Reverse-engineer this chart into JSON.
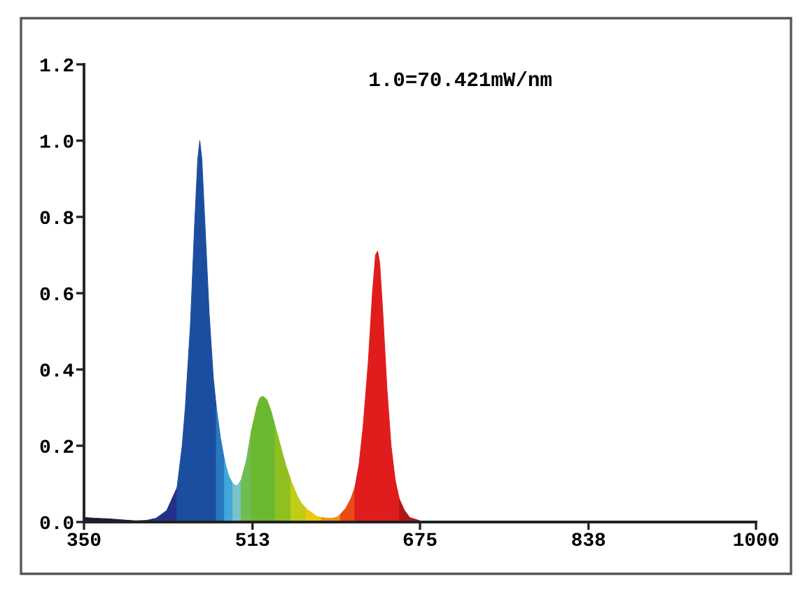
{
  "chart_data": {
    "type": "area",
    "series": [
      {
        "color": "#1a1a3a",
        "x": [
          350,
          360,
          375,
          390,
          400,
          410
        ],
        "values": [
          0.012,
          0.01,
          0.008,
          0.005,
          0.003,
          0.004
        ]
      },
      {
        "color": "#23308a",
        "x": [
          410,
          420,
          430,
          440
        ],
        "values": [
          0.004,
          0.01,
          0.03,
          0.09
        ]
      },
      {
        "color": "#1c4ea0",
        "x": [
          440,
          445,
          448,
          453,
          457,
          460,
          462,
          464,
          467,
          471,
          475,
          478
        ],
        "values": [
          0.09,
          0.2,
          0.3,
          0.52,
          0.78,
          0.95,
          1.0,
          0.95,
          0.78,
          0.55,
          0.38,
          0.3
        ]
      },
      {
        "color": "#2878c0",
        "x": [
          478,
          482,
          486
        ],
        "values": [
          0.3,
          0.22,
          0.16
        ]
      },
      {
        "color": "#40a8dc",
        "x": [
          486,
          490,
          494
        ],
        "values": [
          0.16,
          0.12,
          0.1
        ]
      },
      {
        "color": "#78c4c8",
        "x": [
          494,
          498,
          502
        ],
        "values": [
          0.1,
          0.095,
          0.11
        ]
      },
      {
        "color": "#70bc50",
        "x": [
          502,
          507,
          512
        ],
        "values": [
          0.11,
          0.16,
          0.24
        ]
      },
      {
        "color": "#6cb830",
        "x": [
          512,
          517,
          520,
          523,
          527,
          531,
          535
        ],
        "values": [
          0.24,
          0.3,
          0.325,
          0.33,
          0.32,
          0.29,
          0.25
        ]
      },
      {
        "color": "#90c020",
        "x": [
          535,
          540,
          545,
          550
        ],
        "values": [
          0.25,
          0.2,
          0.15,
          0.11
        ]
      },
      {
        "color": "#c0cc18",
        "x": [
          550,
          556,
          560,
          565
        ],
        "values": [
          0.11,
          0.07,
          0.05,
          0.035
        ]
      },
      {
        "color": "#ecc810",
        "x": [
          565,
          570,
          575,
          580
        ],
        "values": [
          0.035,
          0.025,
          0.015,
          0.012
        ]
      },
      {
        "color": "#f49018",
        "x": [
          580,
          585,
          590,
          595,
          598
        ],
        "values": [
          0.012,
          0.01,
          0.01,
          0.013,
          0.02
        ]
      },
      {
        "color": "#ec4a14",
        "x": [
          598,
          603,
          608,
          612
        ],
        "values": [
          0.02,
          0.035,
          0.06,
          0.09
        ]
      },
      {
        "color": "#e01c1c",
        "x": [
          612,
          616,
          620,
          625,
          629,
          632,
          634,
          636,
          639,
          643,
          647,
          651,
          655
        ],
        "values": [
          0.09,
          0.15,
          0.25,
          0.42,
          0.6,
          0.7,
          0.71,
          0.68,
          0.55,
          0.35,
          0.2,
          0.11,
          0.06
        ]
      },
      {
        "color": "#b01818",
        "x": [
          655,
          660,
          665,
          675,
          700
        ],
        "values": [
          0.06,
          0.03,
          0.012,
          0.003,
          0
        ]
      }
    ],
    "xlim": [
      350,
      1000
    ],
    "xticks": [
      350,
      513,
      675,
      838,
      1000
    ],
    "ylim": [
      0,
      1.2
    ],
    "yticks": [
      {
        "value": 0,
        "label": "0.0"
      },
      {
        "value": 0.2,
        "label": "0.2"
      },
      {
        "value": 0.4,
        "label": "0.4"
      },
      {
        "value": 0.6,
        "label": "0.6"
      },
      {
        "value": 0.8,
        "label": "0.8"
      },
      {
        "value": 1.0,
        "label": "1.0"
      },
      {
        "value": 1.2,
        "label": "1.2"
      }
    ],
    "annotations": [
      "1.0=70.421mW/nm"
    ],
    "grid": false,
    "legend": false
  }
}
